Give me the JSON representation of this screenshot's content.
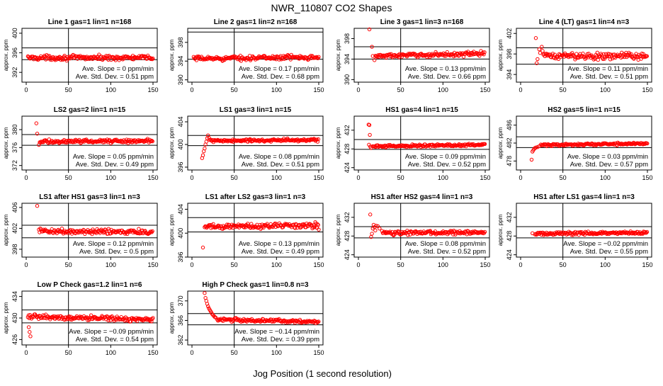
{
  "figure": {
    "title": "NWR_110807  CO2 Shapes",
    "xlabel": "Jog Position (1 second resolution)"
  },
  "chart_data": [
    {
      "type": "scatter",
      "title": "Line 1 gas=1 lin=1 n=168",
      "ylabel": "approx. ppm",
      "xlim": [
        0,
        150
      ],
      "ylim": [
        390,
        401
      ],
      "xticks": [
        0,
        50,
        100,
        150
      ],
      "yticks": [
        392,
        396,
        400
      ],
      "hlines": [
        394.6,
        397.0
      ],
      "vline": 50,
      "start": 2,
      "level": 395.0,
      "trend": 0.0,
      "noise": 0.35,
      "spikes": [],
      "stats": {
        "slope": "Ave. Slope = 0 ppm/min",
        "std": "Ave. Std. Dev. = 0.51 ppm"
      }
    },
    {
      "type": "scatter",
      "title": "Line 2 gas=1 lin=2 n=168",
      "ylabel": "approx. ppm",
      "xlim": [
        0,
        150
      ],
      "ylim": [
        389.5,
        401
      ],
      "xticks": [
        0,
        50,
        100,
        150
      ],
      "yticks": [
        390,
        394,
        398
      ],
      "hlines": [
        394.4,
        400.2
      ],
      "vline": 50,
      "start": 2,
      "level": 394.7,
      "trend": 0.2,
      "noise": 0.35,
      "spikes": [],
      "stats": {
        "slope": "Ave. Slope = 0.17 ppm/min",
        "std": "Ave. Std. Dev. = 0.68 ppm"
      }
    },
    {
      "type": "scatter",
      "title": "Line 3 gas=1 lin=3 n=168",
      "ylabel": "approx. ppm",
      "xlim": [
        0,
        150
      ],
      "ylim": [
        389.5,
        400
      ],
      "xticks": [
        0,
        50,
        100,
        150
      ],
      "yticks": [
        390,
        394,
        398
      ],
      "hlines": [
        394.0,
        396.4
      ],
      "vline": 50,
      "start": 20,
      "level": 394.8,
      "trend": 0.3,
      "noise": 0.3,
      "spikes": [
        [
          13,
          399.8
        ],
        [
          16,
          396.4
        ],
        [
          17,
          394.6
        ],
        [
          19,
          393.8
        ]
      ],
      "stats": {
        "slope": "Ave. Slope = 0.13 ppm/min",
        "std": "Ave. Std. Dev. = 0.66 ppm"
      }
    },
    {
      "type": "scatter",
      "title": "Line 4 (LT) gas=1 lin=4 n=3",
      "ylabel": "approx. ppm",
      "xlim": [
        0,
        150
      ],
      "ylim": [
        392.5,
        403
      ],
      "xticks": [
        0,
        50,
        100,
        150
      ],
      "yticks": [
        394,
        398,
        402
      ],
      "hlines": [
        396.0,
        399.2
      ],
      "vline": 50,
      "start": 27,
      "level": 397.6,
      "trend": 0.0,
      "noise": 0.5,
      "spikes": [
        [
          18,
          401.1
        ],
        [
          19,
          396.2
        ],
        [
          20,
          397.0
        ],
        [
          22,
          398.9
        ],
        [
          23,
          398.2
        ],
        [
          25,
          399.4
        ],
        [
          26,
          398.6
        ]
      ],
      "stats": {
        "slope": "Ave. Slope = 0.11 ppm/min",
        "std": "Ave. Std. Dev. = 0.51 ppm"
      }
    },
    {
      "type": "scatter",
      "title": "LS2 gas=2 lin=1 n=15",
      "ylabel": "approx. ppm",
      "xlim": [
        0,
        150
      ],
      "ylim": [
        371,
        383
      ],
      "xticks": [
        0,
        50,
        100,
        150
      ],
      "yticks": [
        372,
        376,
        380
      ],
      "hlines": [
        376.5,
        378.9
      ],
      "vline": 50,
      "start": 16,
      "level": 377.4,
      "trend": 0.1,
      "noise": 0.3,
      "spikes": [
        [
          12,
          381.4
        ],
        [
          13,
          379.1
        ],
        [
          15,
          376.6
        ]
      ],
      "stats": {
        "slope": "Ave. Slope = 0.05 ppm/min",
        "std": "Ave. Std. Dev. = 0.49 ppm"
      }
    },
    {
      "type": "scatter",
      "title": "LS1 gas=3 lin=1 n=15",
      "ylabel": "approx. ppm",
      "xlim": [
        0,
        150
      ],
      "ylim": [
        395.5,
        405
      ],
      "xticks": [
        0,
        50,
        100,
        150
      ],
      "yticks": [
        396,
        400,
        404
      ],
      "hlines": [
        399.8,
        401.6
      ],
      "vline": 50,
      "start": 22,
      "level": 400.7,
      "trend": 0.1,
      "noise": 0.2,
      "spikes": [
        [
          12,
          397.6
        ],
        [
          13,
          398.1
        ],
        [
          14,
          398.8
        ],
        [
          15,
          399.3
        ],
        [
          16,
          400.0
        ],
        [
          17,
          400.5
        ],
        [
          18,
          401.1
        ],
        [
          19,
          401.6
        ],
        [
          20,
          401.2
        ],
        [
          21,
          400.8
        ]
      ],
      "stats": {
        "slope": "Ave. Slope = 0.08 ppm/min",
        "std": "Ave. Std. Dev. = 0.51 ppm"
      }
    },
    {
      "type": "scatter",
      "title": "HS1 gas=4 lin=1 n=15",
      "ylabel": "approx. ppm",
      "xlim": [
        0,
        150
      ],
      "ylim": [
        423.5,
        435
      ],
      "xticks": [
        0,
        50,
        100,
        150
      ],
      "yticks": [
        424,
        428,
        432
      ],
      "hlines": [
        427.9,
        430.0
      ],
      "vline": 50,
      "start": 17,
      "level": 428.7,
      "trend": 0.2,
      "noise": 0.2,
      "spikes": [
        [
          12,
          433.2
        ],
        [
          13,
          433.1
        ],
        [
          13.5,
          431.0
        ],
        [
          12.5,
          428.9
        ],
        [
          14,
          428.5
        ],
        [
          15,
          428.2
        ]
      ],
      "stats": {
        "slope": "Ave. Slope = 0.09 ppm/min",
        "std": "Ave. Std. Dev. = 0.52 ppm"
      }
    },
    {
      "type": "scatter",
      "title": "HS2 gas=5 lin=1 n=15",
      "ylabel": "approx. ppm",
      "xlim": [
        0,
        150
      ],
      "ylim": [
        476,
        488
      ],
      "xticks": [
        0,
        50,
        100,
        150
      ],
      "yticks": [
        478,
        482,
        486
      ],
      "hlines": [
        481.0,
        483.4
      ],
      "vline": 50,
      "start": 24,
      "level": 481.7,
      "trend": 0.2,
      "noise": 0.2,
      "spikes": [
        [
          13,
          478.3
        ],
        [
          14,
          480.1
        ],
        [
          15,
          480.4
        ],
        [
          16,
          480.7
        ],
        [
          17,
          480.9
        ],
        [
          18,
          481.0
        ],
        [
          20,
          481.1
        ],
        [
          22,
          481.3
        ]
      ],
      "stats": {
        "slope": "Ave. Slope = 0.03 ppm/min",
        "std": "Ave. Std. Dev. = 0.57 ppm"
      }
    },
    {
      "type": "scatter",
      "title": "LS1 after HS1 gas=3 lin=1 n=3",
      "ylabel": "approx. ppm",
      "xlim": [
        0,
        150
      ],
      "ylim": [
        396.5,
        406.8
      ],
      "xticks": [
        0,
        50,
        100,
        150
      ],
      "yticks": [
        398,
        402,
        406
      ],
      "hlines": [
        400.2,
        402.6
      ],
      "vline": 50,
      "start": 15,
      "level": 401.4,
      "trend": -0.1,
      "noise": 0.35,
      "spikes": [
        [
          13,
          406.3
        ]
      ],
      "stats": {
        "slope": "Ave. Slope = 0.12 ppm/min",
        "std": "Ave. Std. Dev. = 0.5 ppm"
      }
    },
    {
      "type": "scatter",
      "title": "LS1 after LS2 gas=3 lin=1 n=3",
      "ylabel": "approx. ppm",
      "xlim": [
        0,
        150
      ],
      "ylim": [
        396,
        405
      ],
      "xticks": [
        0,
        50,
        100,
        150
      ],
      "yticks": [
        396,
        400,
        404
      ],
      "hlines": [
        400.2,
        402.6
      ],
      "vline": 50,
      "start": 15,
      "level": 401.2,
      "trend": 0.2,
      "noise": 0.35,
      "spikes": [
        [
          13,
          397.6
        ],
        [
          148,
          400.9
        ],
        [
          150,
          400.6
        ]
      ],
      "stats": {
        "slope": "Ave. Slope = 0.13 ppm/min",
        "std": "Ave. Std. Dev. = 0.49 ppm"
      }
    },
    {
      "type": "scatter",
      "title": "HS1 after HS2 gas=4 lin=1 n=3",
      "ylabel": "approx. ppm",
      "xlim": [
        0,
        150
      ],
      "ylim": [
        423.5,
        435
      ],
      "xticks": [
        0,
        50,
        100,
        150
      ],
      "yticks": [
        424,
        428,
        432
      ],
      "hlines": [
        427.6,
        430.0
      ],
      "vline": 50,
      "start": 28,
      "level": 428.7,
      "trend": 0.1,
      "noise": 0.3,
      "spikes": [
        [
          14,
          432.6
        ],
        [
          15,
          427.8
        ],
        [
          16,
          428.5
        ],
        [
          17,
          429.6
        ],
        [
          18,
          430.4
        ],
        [
          19,
          429.9
        ],
        [
          20,
          429.2
        ],
        [
          21,
          430.2
        ],
        [
          23,
          430.1
        ],
        [
          25,
          429.6
        ]
      ],
      "stats": {
        "slope": "Ave. Slope = 0.08 ppm/min",
        "std": "Ave. Std. Dev. = 0.52 ppm"
      }
    },
    {
      "type": "scatter",
      "title": "HS1 after LS1 gas=4 lin=1 n=3",
      "ylabel": "approx. ppm",
      "xlim": [
        0,
        150
      ],
      "ylim": [
        423.5,
        435
      ],
      "xticks": [
        0,
        50,
        100,
        150
      ],
      "yticks": [
        424,
        428,
        432
      ],
      "hlines": [
        427.6,
        430.0
      ],
      "vline": 50,
      "start": 17,
      "level": 428.6,
      "trend": 0.1,
      "noise": 0.25,
      "spikes": [
        [
          14,
          428.6
        ]
      ],
      "stats": {
        "slope": "Ave. Slope = −0.02 ppm/min",
        "std": "Ave. Std. Dev. = 0.55 ppm"
      }
    },
    {
      "type": "scatter",
      "title": "Low P Check gas=1.2 lin=1 n=6",
      "ylabel": "approx. ppm",
      "xlim": [
        0,
        150
      ],
      "ylim": [
        425,
        435
      ],
      "xticks": [
        0,
        50,
        100,
        150
      ],
      "yticks": [
        426,
        430,
        434
      ],
      "hlines": [
        429.1,
        431.5
      ],
      "vline": 50,
      "start": 2,
      "level": 430.0,
      "trend": -0.3,
      "noise": 0.3,
      "spikes": [
        [
          3,
          428.3
        ],
        [
          4,
          427.4
        ],
        [
          5,
          426.6
        ]
      ],
      "stats": {
        "slope": "Ave. Slope = −0.09 ppm/min",
        "std": "Ave. Std. Dev. = 0.54 ppm"
      }
    },
    {
      "type": "scatter",
      "title": "High P Check gas=1 lin=0.8 n=3",
      "ylabel": "approx. ppm",
      "xlim": [
        0,
        150
      ],
      "ylim": [
        361,
        372
      ],
      "xticks": [
        0,
        50,
        100,
        150
      ],
      "yticks": [
        362,
        366,
        370
      ],
      "hlines": [
        365.1,
        367.4
      ],
      "vline": 50,
      "start": 30,
      "level": 366.0,
      "trend": -0.3,
      "noise": 0.25,
      "spikes": [
        [
          15,
          371.6
        ],
        [
          16,
          370.6
        ],
        [
          17,
          370.0
        ],
        [
          18,
          369.4
        ],
        [
          19,
          368.9
        ],
        [
          20,
          368.5
        ],
        [
          21,
          368.2
        ],
        [
          22,
          367.9
        ],
        [
          23,
          367.6
        ],
        [
          24,
          367.3
        ],
        [
          25,
          367.1
        ],
        [
          26,
          366.9
        ],
        [
          27,
          366.7
        ],
        [
          28,
          366.6
        ]
      ],
      "stats": {
        "slope": "Ave. Slope = −0.14 ppm/min",
        "std": "Ave. Std. Dev. = 0.39 ppm"
      }
    }
  ],
  "style": {
    "point_color": "#ff0000",
    "line_color": "#000000",
    "background": "#ffffff"
  }
}
